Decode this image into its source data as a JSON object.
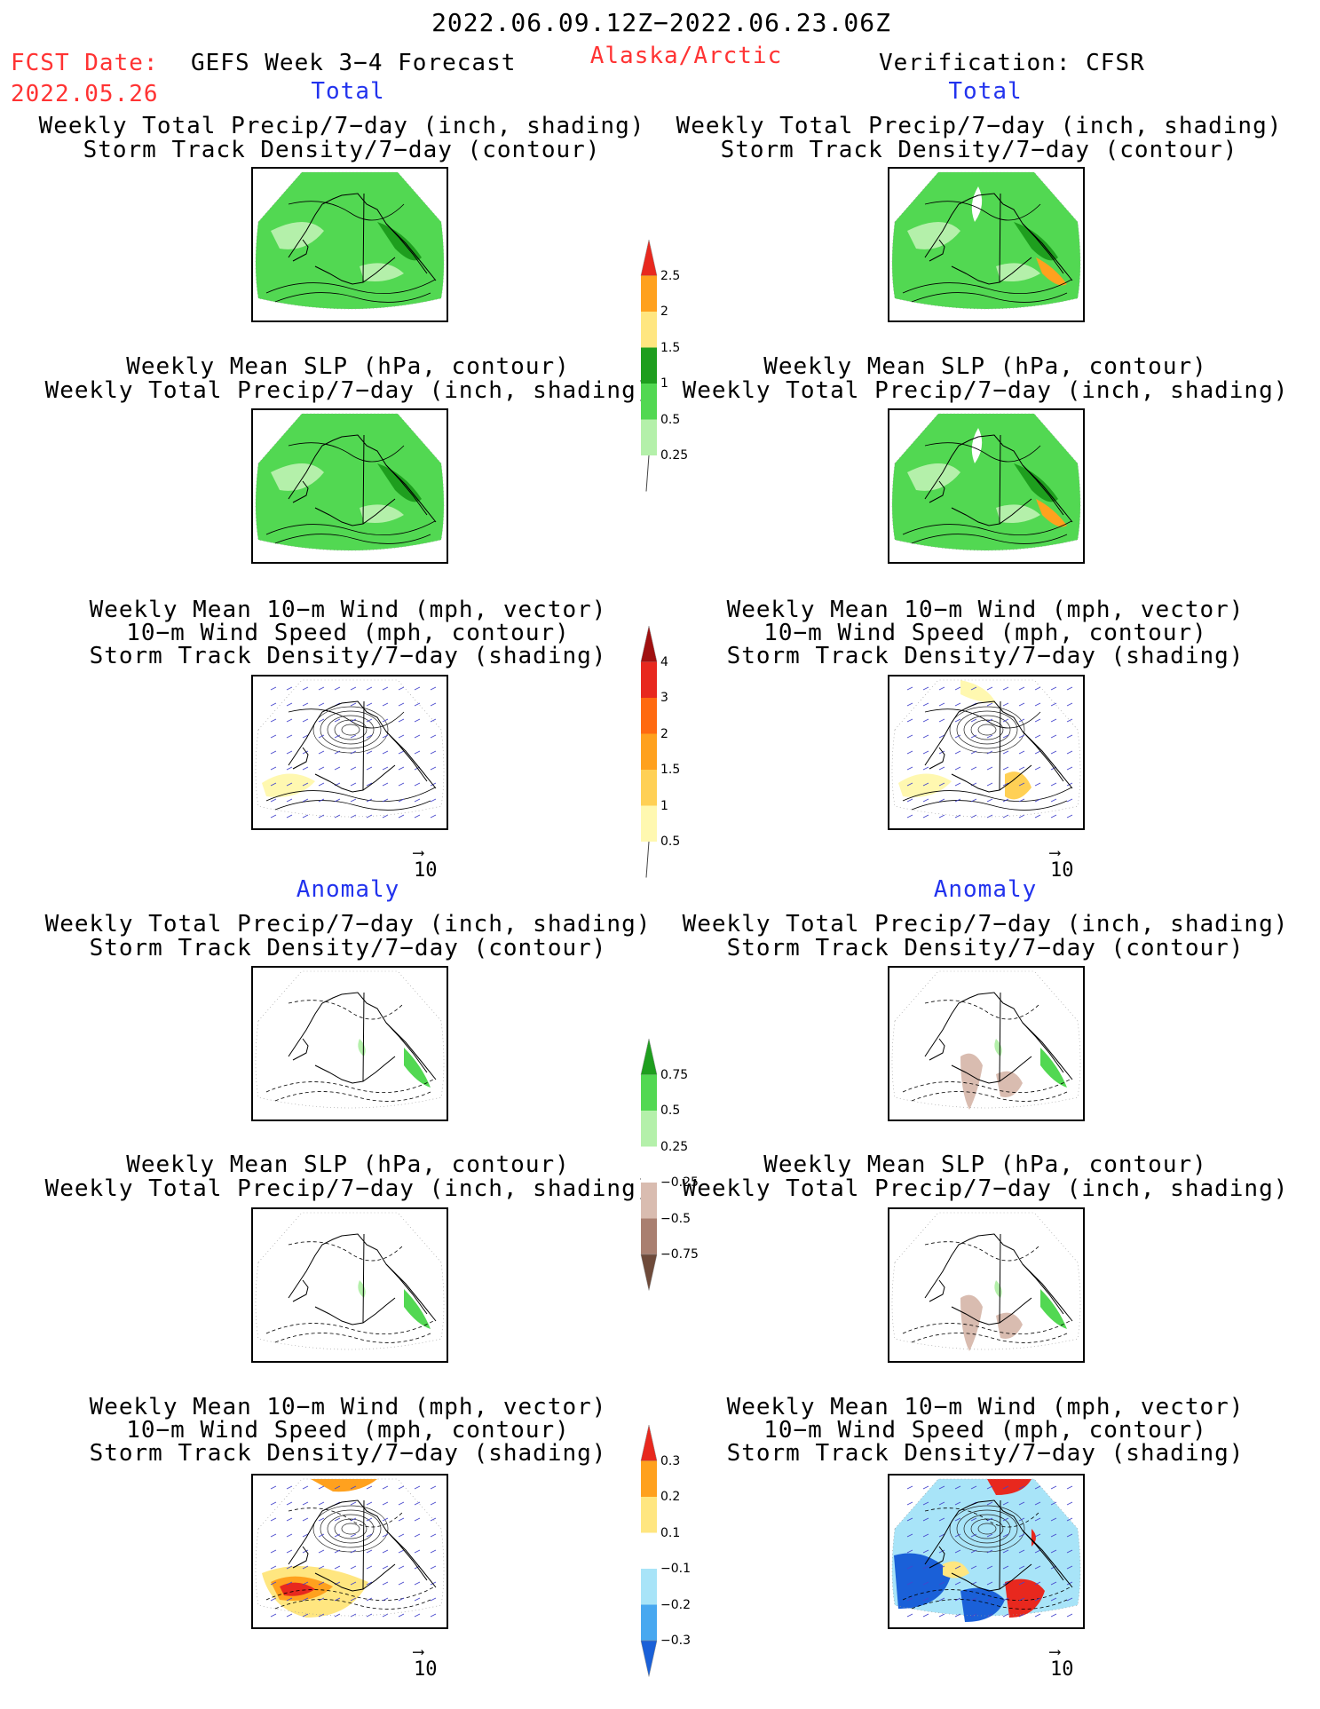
{
  "header": {
    "period": "2022.06.09.12Z−2022.06.23.06Z",
    "fcst_label": "FCST Date:",
    "fcst_date": "2022.05.26",
    "product": "GEFS Week 3−4 Forecast",
    "region": "Alaska/Arctic",
    "verification": "Verification: CFSR"
  },
  "sections": {
    "total_left": "Total",
    "total_right": "Total",
    "anom_left": "Anomaly",
    "anom_right": "Anomaly"
  },
  "titles": {
    "precip_storm_1": "Weekly Total Precip/7−day (inch, shading)",
    "precip_storm_2": "Storm Track Density/7−day (contour)",
    "slp_precip_1": "Weekly Mean SLP (hPa, contour)",
    "slp_precip_2": "Weekly Total Precip/7−day (inch, shading)",
    "wind_1": "Weekly Mean 10−m Wind (mph, vector)",
    "wind_2": "10−m Wind Speed (mph, contour)",
    "wind_3": "Storm Track Density/7−day (shading)"
  },
  "vector_reference": "10",
  "colors": {
    "header_red": "#ff3333",
    "section_blue": "#2233ee",
    "precip": [
      "#b4f0aa",
      "#52d852",
      "#1e9e1e",
      "#ffe680",
      "#ffa11e",
      "#e8281e"
    ],
    "storm": [
      "#fff8b0",
      "#ffd055",
      "#ffa11e",
      "#ff6a10",
      "#e8281e",
      "#a01010"
    ],
    "precip_anom_pos": [
      "#b4f0aa",
      "#52d852",
      "#1e9e1e"
    ],
    "precip_anom_neg": [
      "#d9bcb0",
      "#a97f70",
      "#6e4a3a"
    ],
    "storm_anom_pos": [
      "#ffe680",
      "#ffa11e",
      "#e8281e"
    ],
    "storm_anom_neg": [
      "#a8e4f8",
      "#48a8f0",
      "#1a60d8"
    ]
  },
  "chart_data": [
    {
      "type": "colorbar",
      "title": "",
      "variable": "Weekly Total Precip/7−day (inch)",
      "levels": [
        "0.25",
        "0.5",
        "1",
        "1.5",
        "2",
        "2.5"
      ]
    },
    {
      "type": "colorbar",
      "title": "",
      "variable": "Storm Track Density/7−day",
      "levels": [
        "0.5",
        "1",
        "1.5",
        "2",
        "3",
        "4"
      ]
    },
    {
      "type": "colorbar",
      "title": "",
      "variable": "Weekly Total Precip/7−day anomaly (inch)",
      "levels": [
        "−0.75",
        "−0.5",
        "−0.25",
        "0.25",
        "0.5",
        "0.75"
      ]
    },
    {
      "type": "colorbar",
      "title": "",
      "variable": "Storm Track Density/7−day anomaly",
      "levels": [
        "−0.3",
        "−0.2",
        "−0.1",
        "0.1",
        "0.2",
        "0.3"
      ]
    }
  ]
}
